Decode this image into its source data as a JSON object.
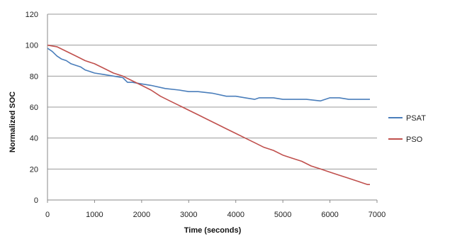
{
  "chart_data": {
    "type": "line",
    "xlabel": "Time (seconds)",
    "ylabel": "Normalized SOC",
    "xlim": [
      0,
      7000
    ],
    "ylim": [
      0,
      120
    ],
    "x_ticks": [
      0,
      1000,
      2000,
      3000,
      4000,
      5000,
      6000,
      7000
    ],
    "y_ticks": [
      0,
      20,
      40,
      60,
      80,
      100,
      120
    ],
    "grid": "horizontal",
    "legend_position": "right",
    "series": [
      {
        "name": "PSAT",
        "color": "#4a7ebb",
        "points": [
          [
            0,
            98
          ],
          [
            100,
            96
          ],
          [
            200,
            93
          ],
          [
            300,
            91
          ],
          [
            400,
            90
          ],
          [
            500,
            88
          ],
          [
            600,
            87
          ],
          [
            700,
            86
          ],
          [
            800,
            84
          ],
          [
            900,
            83
          ],
          [
            1000,
            82
          ],
          [
            1200,
            81
          ],
          [
            1400,
            80
          ],
          [
            1600,
            79
          ],
          [
            1700,
            76
          ],
          [
            1800,
            76
          ],
          [
            2000,
            75
          ],
          [
            2200,
            74
          ],
          [
            2500,
            72
          ],
          [
            2800,
            71
          ],
          [
            3000,
            70
          ],
          [
            3200,
            70
          ],
          [
            3500,
            69
          ],
          [
            3800,
            67
          ],
          [
            4000,
            67
          ],
          [
            4200,
            66
          ],
          [
            4400,
            65
          ],
          [
            4500,
            66
          ],
          [
            4800,
            66
          ],
          [
            5000,
            65
          ],
          [
            5200,
            65
          ],
          [
            5500,
            65
          ],
          [
            5800,
            64
          ],
          [
            6000,
            66
          ],
          [
            6200,
            66
          ],
          [
            6400,
            65
          ],
          [
            6600,
            65
          ],
          [
            6800,
            65
          ],
          [
            6850,
            65
          ]
        ]
      },
      {
        "name": "PSO",
        "color": "#c0504d",
        "points": [
          [
            0,
            100
          ],
          [
            200,
            99
          ],
          [
            400,
            96
          ],
          [
            600,
            93
          ],
          [
            800,
            90
          ],
          [
            1000,
            88
          ],
          [
            1200,
            85
          ],
          [
            1400,
            82
          ],
          [
            1600,
            80
          ],
          [
            1800,
            77
          ],
          [
            2000,
            74
          ],
          [
            2200,
            71
          ],
          [
            2400,
            67
          ],
          [
            2600,
            64
          ],
          [
            2800,
            61
          ],
          [
            3000,
            58
          ],
          [
            3200,
            55
          ],
          [
            3400,
            52
          ],
          [
            3600,
            49
          ],
          [
            3800,
            46
          ],
          [
            4000,
            43
          ],
          [
            4200,
            40
          ],
          [
            4400,
            37
          ],
          [
            4600,
            34
          ],
          [
            4800,
            32
          ],
          [
            5000,
            29
          ],
          [
            5200,
            27
          ],
          [
            5400,
            25
          ],
          [
            5600,
            22
          ],
          [
            5800,
            20
          ],
          [
            6000,
            18
          ],
          [
            6200,
            16
          ],
          [
            6400,
            14
          ],
          [
            6600,
            12
          ],
          [
            6800,
            10
          ],
          [
            6850,
            10
          ]
        ]
      }
    ]
  }
}
